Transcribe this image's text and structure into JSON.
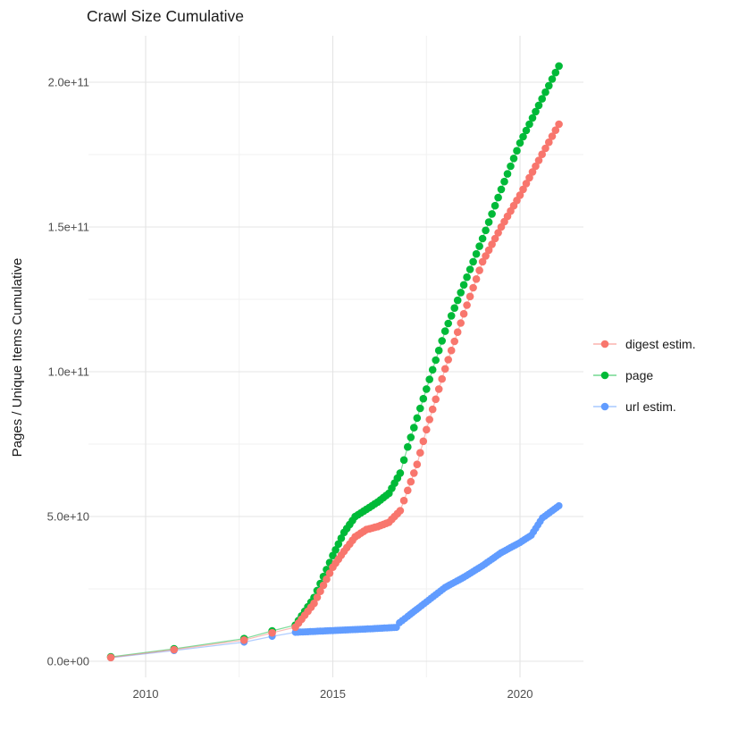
{
  "title": "Crawl Size Cumulative",
  "colors": {
    "digest": "#F8766D",
    "page": "#00BA38",
    "url": "#619CFF",
    "grid_major": "#E4E4E4",
    "grid_minor": "#F1F1F1",
    "tick_label": "#4D4D4D",
    "text": "#1A1A1A",
    "background": "#FFFFFF"
  },
  "legend": {
    "position": "right",
    "items": [
      {
        "label": "digest estim.",
        "series": "digest estim."
      },
      {
        "label": "page",
        "series": "page"
      },
      {
        "label": "url estim.",
        "series": "url estim."
      }
    ]
  },
  "chart_data": {
    "type": "scatter",
    "title": "Crawl Size Cumulative",
    "xlabel": "",
    "ylabel": "Pages / Unique Items Cumulative",
    "xlim": [
      2008.45,
      2021.7
    ],
    "ylim": [
      -5600000000.0,
      216000000000.0
    ],
    "grid": "on",
    "legend_position": "right",
    "x_ticks": [
      {
        "label": "2010",
        "year": 2010
      },
      {
        "label": "2015",
        "year": 2015
      },
      {
        "label": "2020",
        "year": 2020
      }
    ],
    "x_minor_years": [
      2012.5,
      2017.5
    ],
    "y_ticks": [
      {
        "label": "0.0e+00",
        "value": 0
      },
      {
        "label": "5.0e+10",
        "value": 50000000000.0
      },
      {
        "label": "1.0e+11",
        "value": 100000000000.0
      },
      {
        "label": "1.5e+11",
        "value": 150000000000.0
      },
      {
        "label": "2.0e+11",
        "value": 200000000000.0
      }
    ],
    "y_minor_values": [
      25000000000.0,
      75000000000.0,
      125000000000.0,
      175000000000.0
    ],
    "sampling_note": "Dense monthly dots from 2014 onward are rendered by linear interpolation between the keypoints below; points before 2014 are the sparse dots visible in the chart.",
    "series": [
      {
        "name": "digest estim.",
        "color": "#F8766D",
        "dot_r": 4.3,
        "dot_step": 0.084,
        "keypoints": [
          [
            2009.07,
            1300000000.0
          ],
          [
            2010.76,
            4000000000.0
          ],
          [
            2012.63,
            7300000000.0
          ],
          [
            2013.38,
            9800000000.0
          ],
          [
            2014.0,
            11800000000.0
          ],
          [
            2014.5,
            20000000000.0
          ],
          [
            2015.0,
            32500000000.0
          ],
          [
            2015.3,
            38000000000.0
          ],
          [
            2015.6,
            43000000000.0
          ],
          [
            2015.9,
            45500000000.0
          ],
          [
            2016.2,
            46500000000.0
          ],
          [
            2016.5,
            48000000000.0
          ],
          [
            2016.8,
            52000000000.0
          ],
          [
            2017.0,
            59000000000.0
          ],
          [
            2017.25,
            68000000000.0
          ],
          [
            2017.5,
            80000000000.0
          ],
          [
            2018.0,
            101000000000.0
          ],
          [
            2018.5,
            120000000000.0
          ],
          [
            2019.0,
            138000000000.0
          ],
          [
            2019.5,
            150000000000.0
          ],
          [
            2020.0,
            161000000000.0
          ],
          [
            2020.5,
            173000000000.0
          ],
          [
            2021.04,
            185500000000.0
          ]
        ]
      },
      {
        "name": "page",
        "color": "#00BA38",
        "dot_r": 4.3,
        "dot_step": 0.084,
        "keypoints": [
          [
            2009.07,
            1500000000.0
          ],
          [
            2010.76,
            4300000000.0
          ],
          [
            2012.63,
            7800000000.0
          ],
          [
            2013.38,
            10500000000.0
          ],
          [
            2014.0,
            12500000000.0
          ],
          [
            2014.5,
            22000000000.0
          ],
          [
            2015.0,
            36500000000.0
          ],
          [
            2015.3,
            44500000000.0
          ],
          [
            2015.6,
            50000000000.0
          ],
          [
            2015.9,
            52500000000.0
          ],
          [
            2016.2,
            55000000000.0
          ],
          [
            2016.5,
            58000000000.0
          ],
          [
            2016.8,
            65000000000.0
          ],
          [
            2017.0,
            74000000000.0
          ],
          [
            2017.5,
            94000000000.0
          ],
          [
            2018.0,
            114000000000.0
          ],
          [
            2018.5,
            130000000000.0
          ],
          [
            2019.0,
            146000000000.0
          ],
          [
            2019.5,
            163000000000.0
          ],
          [
            2020.0,
            179000000000.0
          ],
          [
            2020.5,
            192000000000.0
          ],
          [
            2021.04,
            205600000000.0
          ]
        ]
      },
      {
        "name": "url estim.",
        "color": "#619CFF",
        "dot_r": 4.0,
        "dot_step": 0.065,
        "keypoints": [
          [
            2009.07,
            1200000000.0
          ],
          [
            2010.76,
            3700000000.0
          ],
          [
            2012.63,
            6600000000.0
          ],
          [
            2013.38,
            8600000000.0
          ],
          [
            2014.0,
            10000000000.0
          ],
          [
            2015.0,
            10600000000.0
          ],
          [
            2016.0,
            11200000000.0
          ],
          [
            2016.7,
            11700000000.0
          ],
          [
            2016.78,
            13300000000.0
          ],
          [
            2017.0,
            15500000000.0
          ],
          [
            2017.3,
            18500000000.0
          ],
          [
            2017.5,
            20500000000.0
          ],
          [
            2018.0,
            25500000000.0
          ],
          [
            2018.5,
            29000000000.0
          ],
          [
            2019.0,
            33000000000.0
          ],
          [
            2019.5,
            37500000000.0
          ],
          [
            2020.0,
            41000000000.0
          ],
          [
            2020.3,
            43500000000.0
          ],
          [
            2020.6,
            49500000000.0
          ],
          [
            2021.04,
            53700000000.0
          ]
        ]
      }
    ]
  }
}
